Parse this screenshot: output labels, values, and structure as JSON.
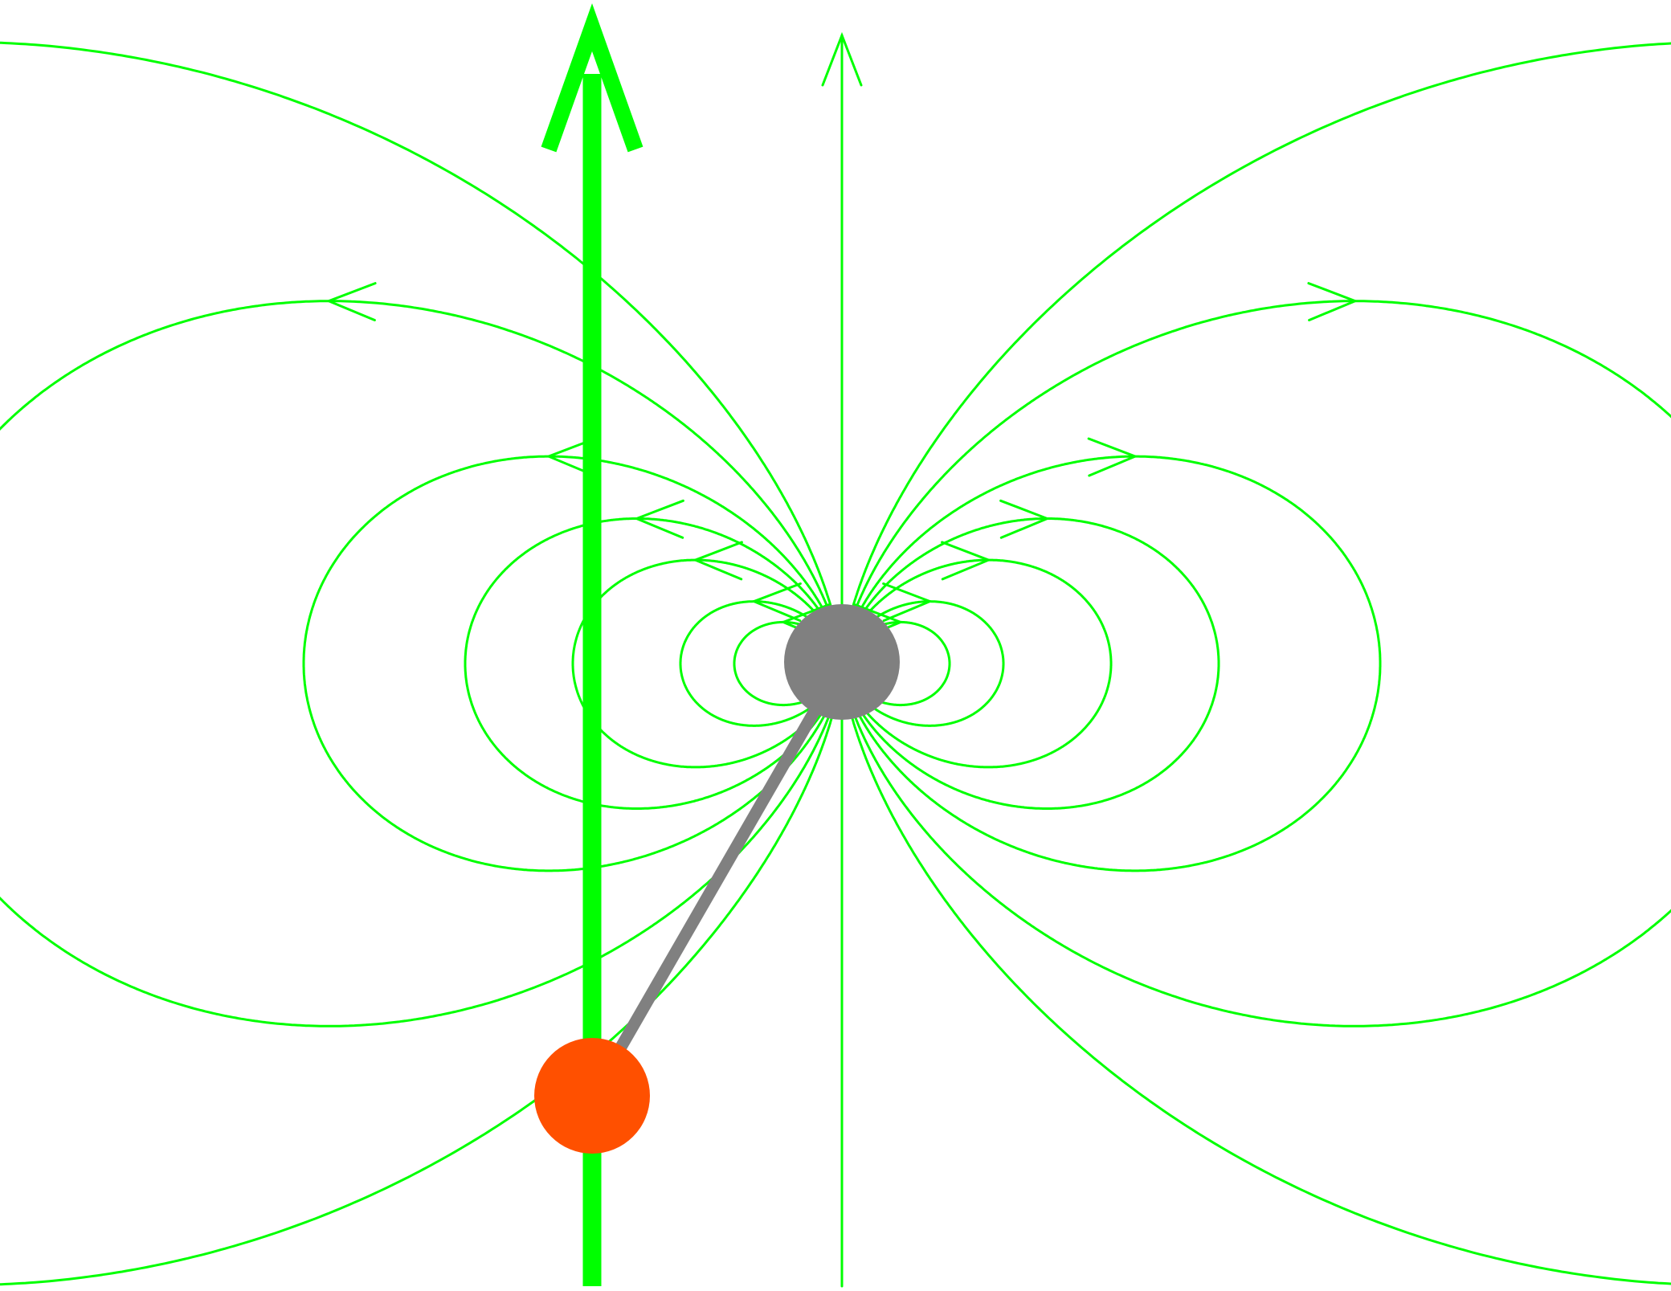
{
  "colors": {
    "field_line": "#00ff00",
    "field_vector": "#00ff00",
    "dipole_body": "#808080",
    "rod": "#808080",
    "test_charge": "#ff5000",
    "background": "#ffffff"
  }
}
